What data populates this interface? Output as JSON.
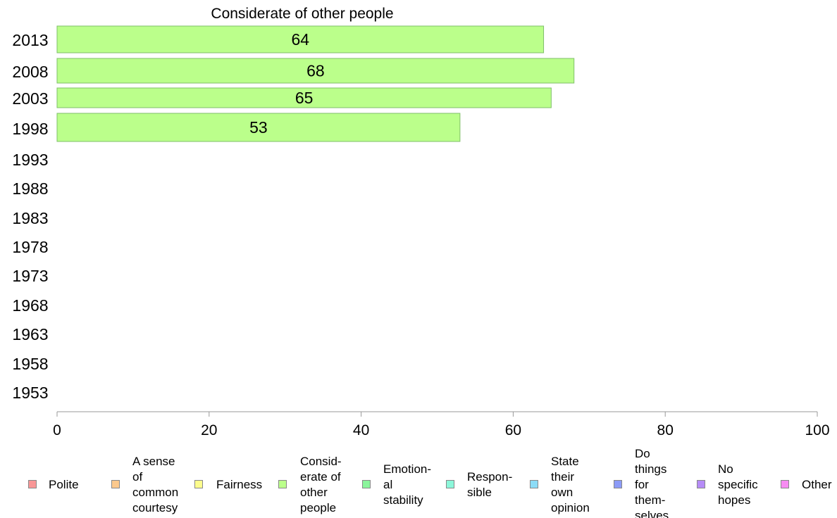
{
  "chart_data": {
    "type": "bar",
    "orientation": "horizontal",
    "title": "Considerate of other people",
    "categories": [
      "2013",
      "2008",
      "2003",
      "1998",
      "1993",
      "1988",
      "1983",
      "1978",
      "1973",
      "1968",
      "1963",
      "1958",
      "1953"
    ],
    "series": [
      {
        "name": "Considerate of other people",
        "color": "#bbff8b",
        "values": [
          64,
          68,
          65,
          53,
          null,
          null,
          null,
          null,
          null,
          null,
          null,
          null,
          null
        ]
      }
    ],
    "xlim": [
      0,
      100
    ],
    "xticks": [
      0,
      20,
      40,
      60,
      80,
      100
    ],
    "grid": false,
    "legend_position": "bottom",
    "legend": [
      {
        "label": [
          "Polite"
        ],
        "color": "#f99797"
      },
      {
        "label": [
          "A sense",
          "of",
          "common",
          "courtesy"
        ],
        "color": "#fcc98d"
      },
      {
        "label": [
          "Fairness"
        ],
        "color": "#fcfc8d"
      },
      {
        "label": [
          "Consid-",
          "erate of",
          "other",
          "people"
        ],
        "color": "#bbff8b"
      },
      {
        "label": [
          "Emotion-",
          "al",
          "stability"
        ],
        "color": "#8bf59c"
      },
      {
        "label": [
          "Respon-",
          "sible"
        ],
        "color": "#8cf7da"
      },
      {
        "label": [
          "State",
          "their",
          "own",
          "opinion"
        ],
        "color": "#8cdcf7"
      },
      {
        "label": [
          "Do",
          "things",
          "for",
          "them-",
          "selves"
        ],
        "color": "#8c9bf7"
      },
      {
        "label": [
          "No",
          "specific",
          "hopes"
        ],
        "color": "#b68cf7"
      },
      {
        "label": [
          "Other"
        ],
        "color": "#f78cf2"
      }
    ]
  }
}
